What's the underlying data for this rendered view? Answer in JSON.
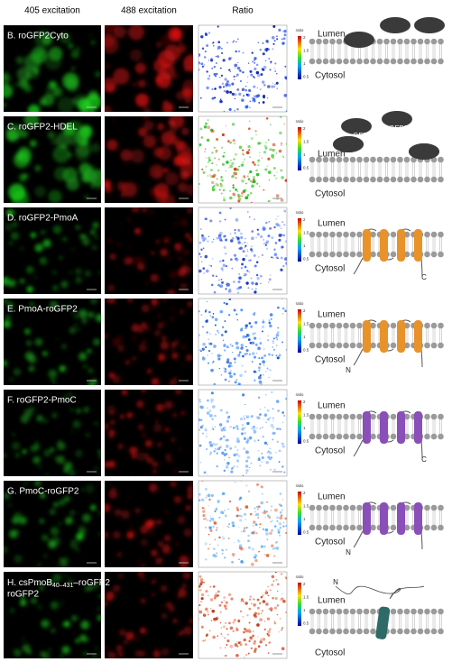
{
  "columns": [
    "405 excitation",
    "488 excitation",
    "Ratio"
  ],
  "colorbar": {
    "label": "ratio",
    "ticks": [
      "2",
      "1.5",
      "1",
      "0.5"
    ]
  },
  "rows": [
    {
      "label": "B. roGFP2Cyto",
      "lumen": "Lumen",
      "cytosol": "Cytosol",
      "tags": [
        "roGFP2",
        "roGFP2"
      ]
    },
    {
      "label": "C. roGFP2-HDEL",
      "lumen": "Lumen",
      "cytosol": "Cytosol",
      "tags": [
        "roGFP2",
        "roGFP2"
      ]
    },
    {
      "label": "D. roGFP2-PmoA",
      "lumen": "Lumen",
      "cytosol": "Cytosol",
      "tags": [
        "roGFP2"
      ],
      "termini": [
        "C"
      ]
    },
    {
      "label": "E. PmoA-roGFP2",
      "lumen": "Lumen",
      "cytosol": "Cytosol",
      "tags": [
        "roGFP2"
      ],
      "termini": [
        "N"
      ]
    },
    {
      "label": "F. roGFP2-PmoC",
      "lumen": "Lumen",
      "cytosol": "Cytosol",
      "tags": [
        "roGFP2"
      ],
      "termini": [
        "C"
      ]
    },
    {
      "label": "G. PmoC-roGFP2",
      "lumen": "Lumen",
      "cytosol": "Cytosol",
      "tags": [
        "roGFP2"
      ],
      "termini": [
        "N"
      ]
    },
    {
      "label": "H. csPmoB",
      "label_sub": "40–431",
      "label_end": "–roGFP2",
      "lumen": "Lumen",
      "cytosol": "Cytosol",
      "tags": [
        "roGFP2"
      ],
      "termini": [
        "N"
      ]
    }
  ]
}
